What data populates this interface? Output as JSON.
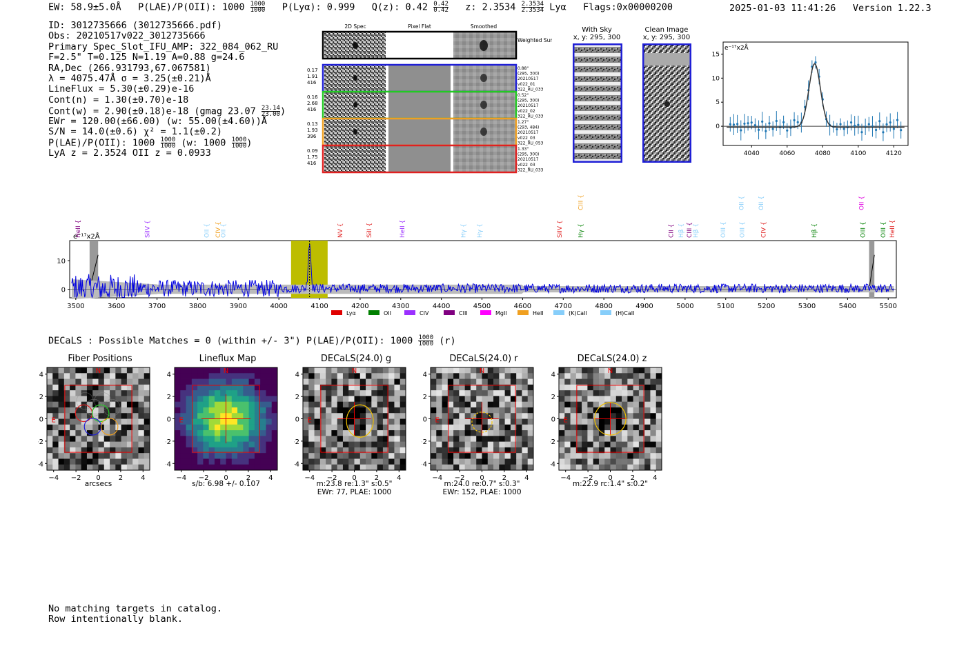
{
  "header": {
    "ew": "EW: 58.9±5.0Å",
    "plae_label": "P(LAE)/P(OII): 1000",
    "plae_hi": "1000",
    "plae_lo": "1000",
    "plya": "P(Lyα): 0.999",
    "qz_label": "Q(z): 0.42",
    "qz_hi": "0.42",
    "qz_lo": "0.42",
    "z_label": "z: 2.3534",
    "z_hi": "2.3534",
    "z_lo": "2.3534",
    "lya": "Lyα",
    "flags": "Flags:0x00000200",
    "datetime": "2025-01-03 11:41:26",
    "version": "Version 1.22.3"
  },
  "info": {
    "id": "ID: 3012735666 (3012735666.pdf)",
    "obs": "Obs: 20210517v022_3012735666",
    "primary": "Primary Spec_Slot_IFU_AMP: 322_084_062_RU",
    "fwhm": "F=2.5\"  T=0.125  N=1.19  A=0.88  g=24.6",
    "radec": "RA,Dec (266.931793,67.067581)",
    "lambda": "λ = 4075.47Å  σ = 3.25(±0.21)Å",
    "lineflux": "LineFlux = 5.30(±0.29)e-16",
    "contn": "Cont(n) = 1.30(±0.70)e-18",
    "contw": "Cont(w) = 2.90(±0.18)e-18 (gmag 23.07",
    "contw_hi": "23.14",
    "contw_lo": "23.00",
    "ewr": "EWr = 120.00(±66.00) (w: 55.00(±4.60))Å",
    "sn": "S/N = 14.0(±0.6)  χ² = 1.1(±0.2)",
    "plae": "P(LAE)/P(OII): 1000",
    "plae_hi": "1000",
    "plae_lo": "1000",
    "plae_w": "(w: 1000",
    "plae_w_hi": "1000",
    "plae_w_lo": "1000",
    "lyaz": "LyA z = 2.3524   OII z = 0.0933"
  },
  "stamps": {
    "col_headers": [
      "2D Spec",
      "Pixel Flat",
      "Smoothed"
    ],
    "weighted_label": "Weighted Sum",
    "rows": [
      {
        "left": [
          "0.17",
          "1.91",
          "416"
        ],
        "right": [
          "0.88\"",
          "(295, 300)",
          "20210517",
          "v022_01",
          "322_RU_033"
        ],
        "color": "#1f1fd6"
      },
      {
        "left": [
          "0.16",
          "2.68",
          "416"
        ],
        "right": [
          "0.52\"",
          "(295, 300)",
          "20210517",
          "v022_02",
          "322_RU_033"
        ],
        "color": "#22c922"
      },
      {
        "left": [
          "0.13",
          "1.93",
          "396"
        ],
        "right": [
          "1.27\"",
          "(293, 484)",
          "20210517",
          "v022_03",
          "322_RU_053"
        ],
        "color": "#f0a020"
      },
      {
        "left": [
          "0.09",
          "1.75",
          "416"
        ],
        "right": [
          "1.33\"",
          "(295, 300)",
          "20210517",
          "v022_03",
          "322_RU_033"
        ],
        "color": "#e02020"
      }
    ]
  },
  "sky": {
    "with_sky": "With Sky",
    "with_sky_xy": "x, y: 295, 300",
    "clean": "Clean Image",
    "clean_xy": "x, y: 295, 300"
  },
  "fit_plot": {
    "unit_label": "e⁻¹⁷x2Å",
    "xticks": [
      "4040",
      "4060",
      "4080",
      "4100",
      "4120"
    ],
    "yticks": [
      "15",
      "10",
      "5",
      "0"
    ]
  },
  "spectrum": {
    "unit_label": "e⁻¹⁷x2Å",
    "yticks": [
      "10",
      "0"
    ],
    "xticks": [
      "3500",
      "3600",
      "3700",
      "3800",
      "3900",
      "4000",
      "4100",
      "4200",
      "4300",
      "4400",
      "4500",
      "4600",
      "4700",
      "4800",
      "4900",
      "5000",
      "5100",
      "5200",
      "5300",
      "5400",
      "5500"
    ],
    "lines": [
      {
        "name": "HeII",
        "w": 3505,
        "color": "#800080",
        "row": 1
      },
      {
        "name": "SiIV",
        "w": 3676,
        "color": "#9b30ff",
        "row": 1
      },
      {
        "name": "OII",
        "w": 3822,
        "color": "#87cefa",
        "row": 1
      },
      {
        "name": "CIV",
        "w": 3850,
        "color": "#f0a020",
        "row": 1
      },
      {
        "name": "OII",
        "w": 3863,
        "color": "#87cefa",
        "row": 1
      },
      {
        "name": "NV",
        "w": 4151,
        "color": "#e02020",
        "row": 1
      },
      {
        "name": "SiII",
        "w": 4222,
        "color": "#e02020",
        "row": 1
      },
      {
        "name": "HeII",
        "w": 4304,
        "color": "#9b30ff",
        "row": 1
      },
      {
        "name": "Hγ",
        "w": 4454,
        "color": "#87cefa",
        "row": 1
      },
      {
        "name": "Hγ",
        "w": 4494,
        "color": "#87cefa",
        "row": 1
      },
      {
        "name": "SiIV",
        "w": 4691,
        "color": "#e02020",
        "row": 1
      },
      {
        "name": "CIII",
        "w": 4743,
        "color": "#f0a020",
        "row": 0
      },
      {
        "name": "Hγ",
        "w": 4743,
        "color": "#008000",
        "row": 1
      },
      {
        "name": "CII",
        "w": 4965,
        "color": "#800080",
        "row": 1
      },
      {
        "name": "Hβ",
        "w": 4990,
        "color": "#87cefa",
        "row": 1
      },
      {
        "name": "CIII",
        "w": 5010,
        "color": "#800080",
        "row": 1
      },
      {
        "name": "Hβ",
        "w": 5026,
        "color": "#87cefa",
        "row": 1
      },
      {
        "name": "OIII",
        "w": 5094,
        "color": "#87cefa",
        "row": 1
      },
      {
        "name": "OII",
        "w": 5139,
        "color": "#87cefa",
        "row": 0
      },
      {
        "name": "OIII",
        "w": 5140,
        "color": "#87cefa",
        "row": 1
      },
      {
        "name": "OII",
        "w": 5187,
        "color": "#87cefa",
        "row": 0
      },
      {
        "name": "CIV",
        "w": 5193,
        "color": "#e02020",
        "row": 1
      },
      {
        "name": "Hβ",
        "w": 5318,
        "color": "#008000",
        "row": 1
      },
      {
        "name": "OII",
        "w": 5434,
        "color": "#e000e0",
        "row": 0
      },
      {
        "name": "OIII",
        "w": 5438,
        "color": "#008000",
        "row": 1
      },
      {
        "name": "OIII",
        "w": 5488,
        "color": "#008000",
        "row": 1
      },
      {
        "name": "HeII",
        "w": 5510,
        "color": "#e02020",
        "row": 1
      }
    ],
    "legend": [
      {
        "label": "Lyα",
        "color": "#e00000"
      },
      {
        "label": "OII",
        "color": "#008000"
      },
      {
        "label": "CIV",
        "color": "#9b30ff"
      },
      {
        "label": "CIII",
        "color": "#800080"
      },
      {
        "label": "MgII",
        "color": "#ff00ff"
      },
      {
        "label": "HeII",
        "color": "#f0a020"
      },
      {
        "label": "(K)CaII",
        "color": "#87cefa"
      },
      {
        "label": "(H)CaII",
        "color": "#87cefa"
      }
    ]
  },
  "decals": {
    "line": "DECaLS : Possible Matches = 0 (within +/- 3\")  P(LAE)/P(OII): 1000",
    "line_hi": "1000",
    "line_lo": "1000",
    "line_suffix": "(r)"
  },
  "cutouts": [
    {
      "title": "Fiber Positions",
      "caption": [
        "arcsecs"
      ],
      "kind": "fibers"
    },
    {
      "title": "Lineflux Map",
      "caption": [
        "s/b: 6.98 +/- 0.107"
      ],
      "kind": "lineflux"
    },
    {
      "title": "DECaLS(24.0) g",
      "caption": [
        "m:23.8  re:1.3\"  s:0.5\"",
        "EWr: 77, PLAE: 1000"
      ],
      "kind": "g"
    },
    {
      "title": "DECaLS(24.0) r",
      "caption": [
        "m:24.0  re:0.7\"  s:0.3\"",
        "EWr: 152, PLAE: 1000"
      ],
      "kind": "r"
    },
    {
      "title": "DECaLS(24.0) z",
      "caption": [
        "m:22.9 rc:1.4\"  s:0.2\""
      ],
      "kind": "z"
    }
  ],
  "cutout_axes": {
    "ticks": [
      "4",
      "2",
      "0",
      "−2",
      "−4"
    ],
    "xticks": [
      "−4",
      "−2",
      "0",
      "2",
      "4"
    ],
    "n_label": "N",
    "e_label": "E"
  },
  "footer": {
    "line1": "No matching targets in catalog.",
    "line2": "Row intentionally blank."
  }
}
